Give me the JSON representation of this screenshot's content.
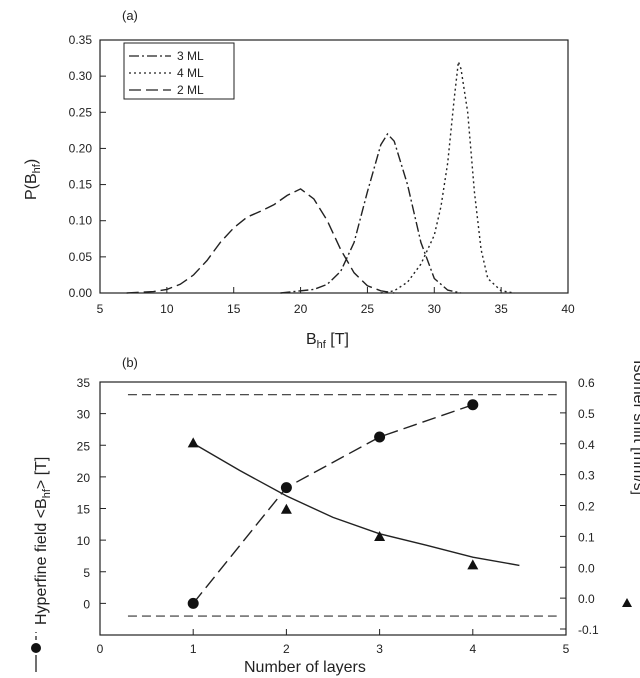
{
  "chart_data": [
    {
      "panel_label": "(a)",
      "type": "line",
      "xlabel_main": "B",
      "xlabel_sub": "hf",
      "xlabel_unit": " [T]",
      "ylabel_main": "P(B",
      "ylabel_sub": "hf",
      "ylabel_close": ")",
      "xlim": [
        5,
        40
      ],
      "ylim": [
        0,
        0.35
      ],
      "xticks": [
        "5",
        "10",
        "15",
        "20",
        "25",
        "30",
        "35",
        "40"
      ],
      "yticks": [
        "0.00",
        "0.05",
        "0.10",
        "0.15",
        "0.20",
        "0.25",
        "0.30",
        "0.35"
      ],
      "legend_position": "top-left",
      "series": [
        {
          "name": "3 ML",
          "dash": "dashdot",
          "x": [
            18.5,
            21,
            22,
            23,
            24,
            25,
            26,
            26.5,
            27,
            28,
            29,
            30,
            31,
            32
          ],
          "y": [
            0.0,
            0.005,
            0.012,
            0.03,
            0.07,
            0.14,
            0.205,
            0.22,
            0.21,
            0.15,
            0.07,
            0.02,
            0.004,
            0.0
          ]
        },
        {
          "name": "4 ML",
          "dash": "dotted",
          "x": [
            26,
            27,
            28,
            29,
            30,
            30.5,
            31,
            31.5,
            31.8,
            32,
            32.5,
            33,
            33.5,
            34,
            35,
            36
          ],
          "y": [
            0.0,
            0.003,
            0.015,
            0.04,
            0.08,
            0.12,
            0.18,
            0.27,
            0.32,
            0.31,
            0.25,
            0.14,
            0.06,
            0.02,
            0.003,
            0.0
          ]
        },
        {
          "name": "2 ML",
          "dash": "longdash",
          "x": [
            7,
            9,
            10,
            11,
            12,
            13,
            14,
            15,
            16,
            17,
            18,
            19,
            20,
            21,
            22,
            23,
            24,
            25,
            26,
            27
          ],
          "y": [
            0.0,
            0.002,
            0.005,
            0.012,
            0.025,
            0.045,
            0.07,
            0.09,
            0.105,
            0.113,
            0.122,
            0.135,
            0.144,
            0.13,
            0.1,
            0.06,
            0.028,
            0.01,
            0.003,
            0.0
          ]
        }
      ]
    },
    {
      "panel_label": "(b)",
      "type": "line",
      "xlabel": "Number of layers",
      "ylabel_left_main": "Hyperfine field <B",
      "ylabel_left_sub": "hf",
      "ylabel_left_close": "> [T]",
      "ylabel_right": "Isomer shift [mm/s]",
      "xlim": [
        0,
        5
      ],
      "ylim_left": [
        -5,
        35
      ],
      "ylim_right": [
        -0.1,
        0.6
      ],
      "xticks": [
        "0",
        "1",
        "2",
        "3",
        "4",
        "5"
      ],
      "yticks_left": [
        "0",
        "5",
        "10",
        "15",
        "20",
        "25",
        "30",
        "35"
      ],
      "yticks_right": [
        "-0.1",
        "0.0",
        "0.0",
        "0.1",
        "0.2",
        "0.3",
        "0.4",
        "0.5",
        "0.6"
      ],
      "series": [
        {
          "name": "Hyperfine field",
          "marker": "circle",
          "axis": "left",
          "dash": "longdash",
          "x": [
            1,
            2,
            3,
            4
          ],
          "y": [
            0.0,
            18.3,
            26.3,
            31.4
          ]
        },
        {
          "name": "Isomer shift",
          "marker": "triangle",
          "axis": "left",
          "x": [
            1,
            2,
            3,
            4
          ],
          "y": [
            25.3,
            14.8,
            10.5,
            6.0
          ]
        }
      ],
      "fit_curve": {
        "x": [
          1,
          1.5,
          2,
          2.5,
          3,
          3.5,
          4,
          4.5
        ],
        "y": [
          25.3,
          21.0,
          17.0,
          13.6,
          11.0,
          9.2,
          7.3,
          6.0
        ]
      },
      "reference_lines": {
        "left_axis_values": [
          33.0,
          -2.0
        ],
        "x_range": [
          0.3,
          4.9
        ]
      }
    }
  ]
}
